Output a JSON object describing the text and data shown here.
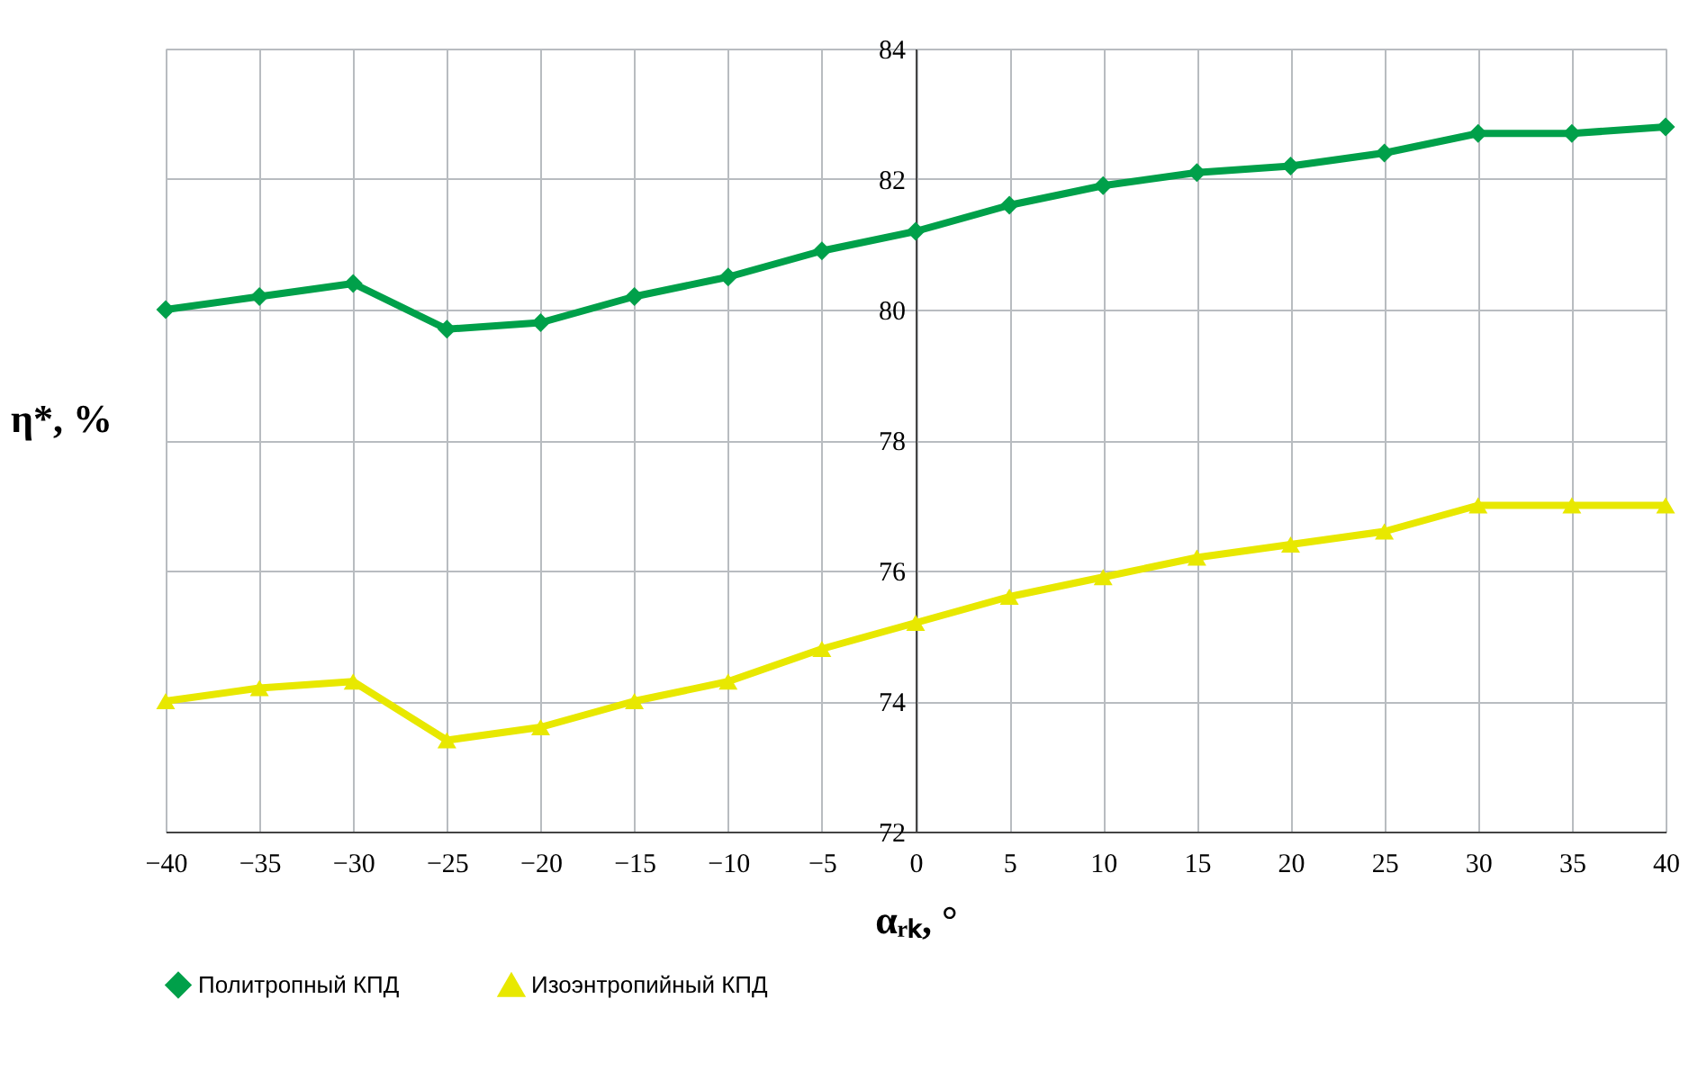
{
  "chart_data": {
    "type": "line",
    "xlabel": "αᵣₖ, °",
    "ylabel": "η*, %",
    "x": [
      -40,
      -35,
      -30,
      -25,
      -20,
      -15,
      -10,
      -5,
      0,
      5,
      10,
      15,
      20,
      25,
      30,
      35,
      40
    ],
    "series": [
      {
        "name": "Политропный КПД",
        "color": "#00a04a",
        "marker": "diamond",
        "values": [
          80.0,
          80.2,
          80.4,
          79.7,
          79.8,
          80.2,
          80.5,
          80.9,
          81.2,
          81.6,
          81.9,
          82.1,
          82.2,
          82.4,
          82.7,
          82.7,
          82.8
        ]
      },
      {
        "name": "Изоэнтропийный КПД",
        "color": "#e8e800",
        "marker": "triangle",
        "values": [
          74.0,
          74.2,
          74.3,
          73.4,
          73.6,
          74.0,
          74.3,
          74.8,
          75.2,
          75.6,
          75.9,
          76.2,
          76.4,
          76.6,
          77.0,
          77.0,
          77.0
        ]
      }
    ],
    "xlim": [
      -40,
      40
    ],
    "xticks": [
      -40,
      -35,
      -30,
      -25,
      -20,
      -15,
      -10,
      -5,
      0,
      5,
      10,
      15,
      20,
      25,
      30,
      35,
      40
    ],
    "ylim": [
      72,
      84
    ],
    "yticks": [
      72,
      74,
      76,
      78,
      80,
      82,
      84
    ],
    "grid": true,
    "legend": "bottom",
    "line_style": "solid"
  }
}
